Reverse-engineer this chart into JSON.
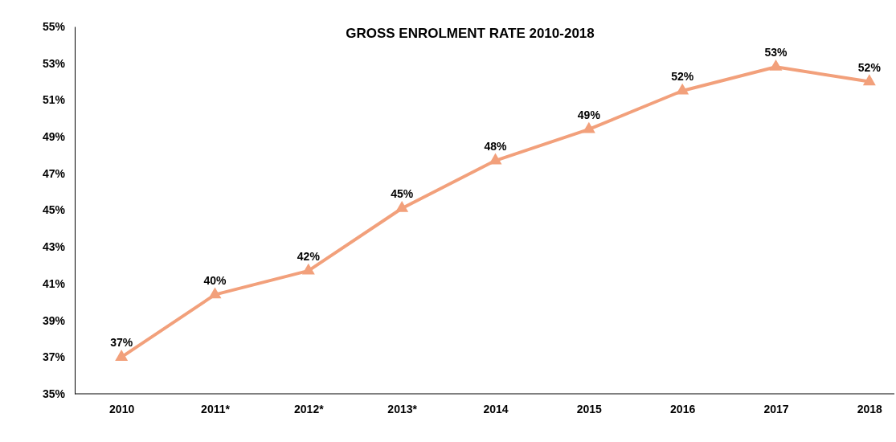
{
  "chart_data": {
    "type": "line",
    "title": "GROSS ENROLMENT  RATE 2010-2018",
    "categories": [
      "2010",
      "2011*",
      "2012*",
      "2013*",
      "2014",
      "2015",
      "2016",
      "2017",
      "2018"
    ],
    "series": [
      {
        "color": "#f2a07b",
        "values": [
          37.0,
          40.4,
          41.7,
          45.1,
          47.7,
          49.4,
          51.5,
          52.8,
          52.0
        ],
        "value_labels": [
          "37%",
          "40%",
          "42%",
          "45%",
          "48%",
          "49%",
          "52%",
          "53%",
          "52%"
        ]
      }
    ],
    "ylim": [
      35,
      55
    ],
    "yticks": [
      {
        "value": 35,
        "label": "35%"
      },
      {
        "value": 37,
        "label": "37%"
      },
      {
        "value": 39,
        "label": "39%"
      },
      {
        "value": 41,
        "label": "41%"
      },
      {
        "value": 43,
        "label": "43%"
      },
      {
        "value": 45,
        "label": "45%"
      },
      {
        "value": 47,
        "label": "47%"
      },
      {
        "value": 49,
        "label": "49%"
      },
      {
        "value": 51,
        "label": "51%"
      },
      {
        "value": 53,
        "label": "53%"
      },
      {
        "value": 55,
        "label": "55%"
      }
    ],
    "grid": false,
    "marker": "triangle",
    "line_style": "solid"
  }
}
